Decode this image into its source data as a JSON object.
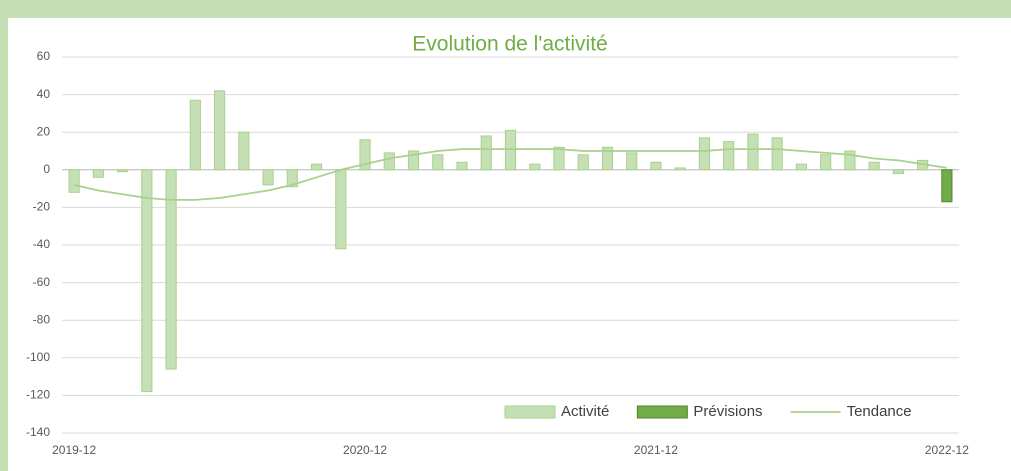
{
  "chart_data": {
    "type": "bar",
    "title": "Evolution de l'activité",
    "categories": [
      "2019-12",
      null,
      null,
      null,
      null,
      null,
      null,
      null,
      null,
      null,
      null,
      null,
      "2020-12",
      null,
      null,
      null,
      null,
      null,
      null,
      null,
      null,
      null,
      null,
      null,
      "2021-12",
      null,
      null,
      null,
      null,
      null,
      null,
      null,
      null,
      null,
      null,
      null,
      "2022-12"
    ],
    "series": [
      {
        "name": "Activité",
        "color": "#c5e0b4",
        "stroke": "#a9d18e",
        "values": [
          -12,
          -4,
          -1,
          -118,
          -106,
          37,
          42,
          20,
          -8,
          -9,
          3,
          -42,
          16,
          9,
          10,
          8,
          4,
          18,
          21,
          3,
          12,
          8,
          12,
          9,
          4,
          1,
          17,
          15,
          19,
          17,
          3,
          8,
          10,
          4,
          -2,
          5,
          null
        ]
      },
      {
        "name": "Prévisions",
        "color": "#70ad47",
        "stroke": "#548235",
        "values": [
          null,
          null,
          null,
          null,
          null,
          null,
          null,
          null,
          null,
          null,
          null,
          null,
          null,
          null,
          null,
          null,
          null,
          null,
          null,
          null,
          null,
          null,
          null,
          null,
          null,
          null,
          null,
          null,
          null,
          null,
          null,
          null,
          null,
          null,
          null,
          null,
          -17
        ]
      },
      {
        "name": "Tendance",
        "type": "line",
        "color": "#a9d18e",
        "values": [
          -8,
          -11,
          -13,
          -15,
          -16,
          -16,
          -15,
          -13,
          -11,
          -8,
          -4,
          0,
          3,
          6,
          8,
          10,
          11,
          11,
          11,
          11,
          11,
          10,
          10,
          10,
          10,
          10,
          10,
          11,
          11,
          11,
          10,
          9,
          8,
          6,
          5,
          3,
          1
        ]
      }
    ],
    "ylim": [
      -140,
      60
    ],
    "yticks": [
      -140,
      -120,
      -100,
      -80,
      -60,
      -40,
      -20,
      0,
      20,
      40,
      60
    ],
    "grid": true,
    "legend": "lower right"
  }
}
